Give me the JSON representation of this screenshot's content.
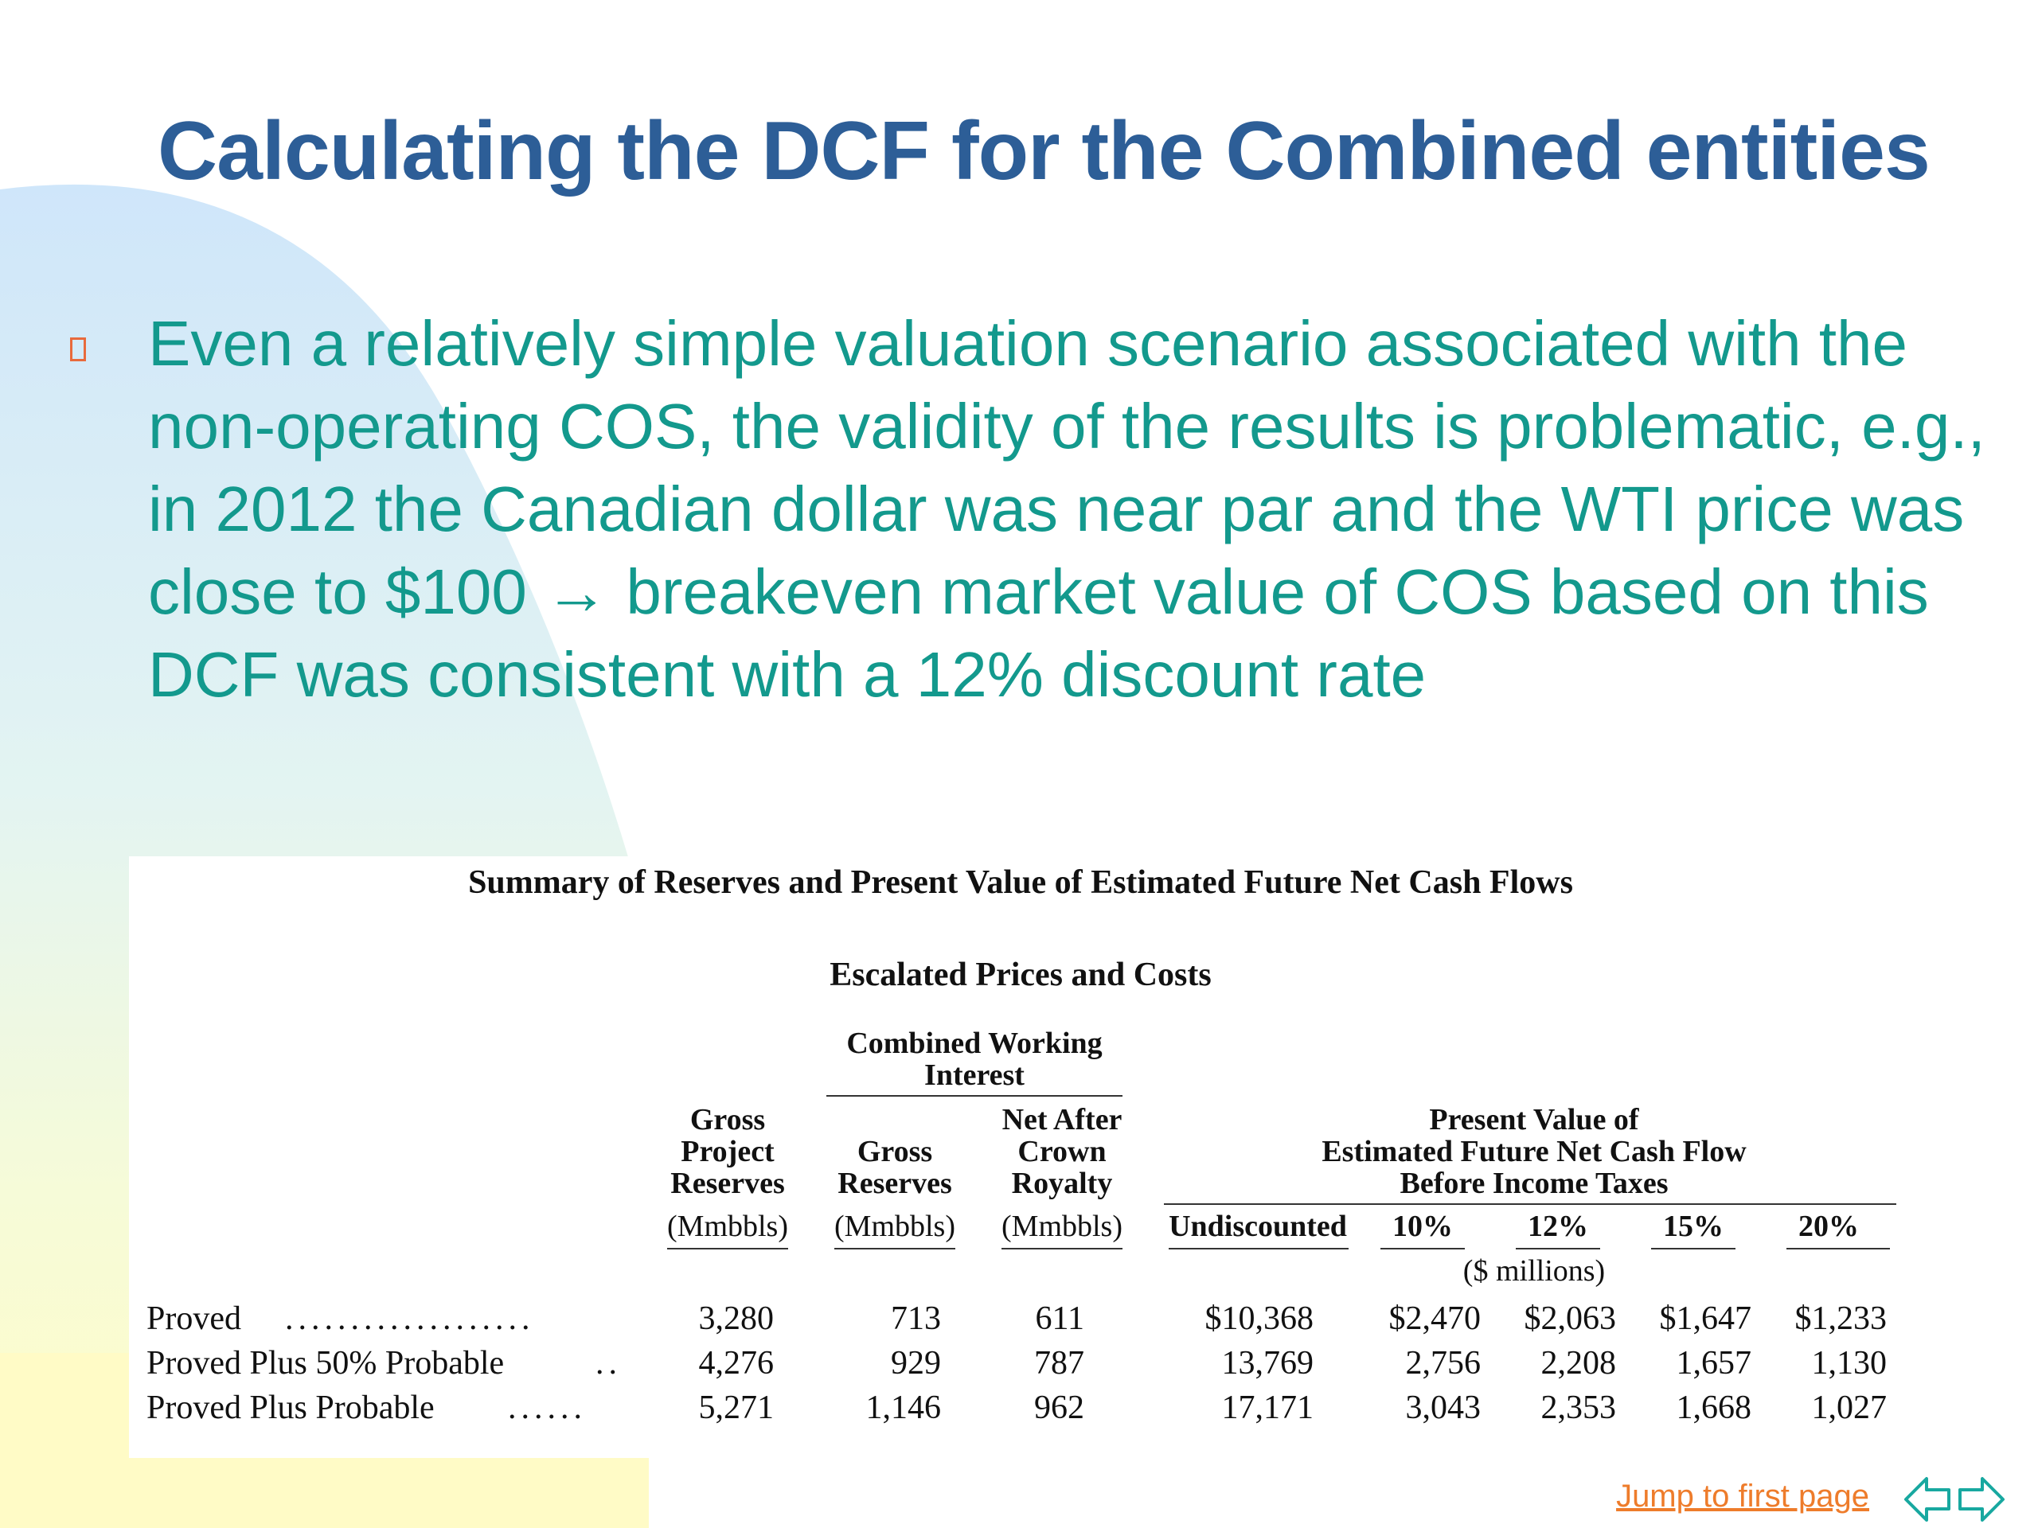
{
  "slide": {
    "title": "Calculating the DCF for the Combined entities",
    "bullet_text": "Even a relatively simple valuation scenario associated with the non-operating COS, the validity of the results is problematic, e.g., in 2012 the Canadian dollar was near par and the WTI price was close to $100 → breakeven market value of COS based on this DCF was consistent with a 12% discount rate",
    "bullet_icon": "square-bullet-icon"
  },
  "table": {
    "title": "Summary of Reserves and Present Value of Estimated Future Net Cash Flows",
    "subtitle": "Escalated Prices and Costs",
    "group_combined": [
      "Combined Working",
      "Interest"
    ],
    "group_present_value": [
      "Present Value of",
      "Estimated Future Net Cash Flow",
      "Before Income Taxes"
    ],
    "col_gross_project": [
      "Gross",
      "Project",
      "Reserves"
    ],
    "col_gross_reserves": [
      "Gross",
      "Reserves"
    ],
    "col_net_after": [
      "Net After",
      "Crown",
      "Royalty"
    ],
    "units": [
      "(Mmbbls)",
      "(Mmbbls)",
      "(Mmbbls)"
    ],
    "pv_columns": [
      "Undiscounted",
      "10%",
      "12%",
      "15%",
      "20%"
    ],
    "pv_units": "($ millions)",
    "rows": [
      {
        "label": "Proved",
        "dots": "...................",
        "values": [
          "3,280",
          "713",
          "611",
          "$10,368",
          "$2,470",
          "$2,063",
          "$1,647",
          "$1,233"
        ]
      },
      {
        "label": "Proved Plus 50% Probable",
        "dots": "..",
        "values": [
          "4,276",
          "929",
          "787",
          "13,769",
          "2,756",
          "2,208",
          "1,657",
          "1,130"
        ]
      },
      {
        "label": "Proved Plus Probable",
        "dots": "......",
        "values": [
          "5,271",
          "1,146",
          "962",
          "17,171",
          "3,043",
          "2,353",
          "1,668",
          "1,027"
        ]
      }
    ]
  },
  "footer": {
    "jump_link": "Jump to first page",
    "prev_icon": "back-arrow-icon",
    "next_icon": "forward-arrow-icon",
    "accent_color": "#ee7c2b"
  }
}
